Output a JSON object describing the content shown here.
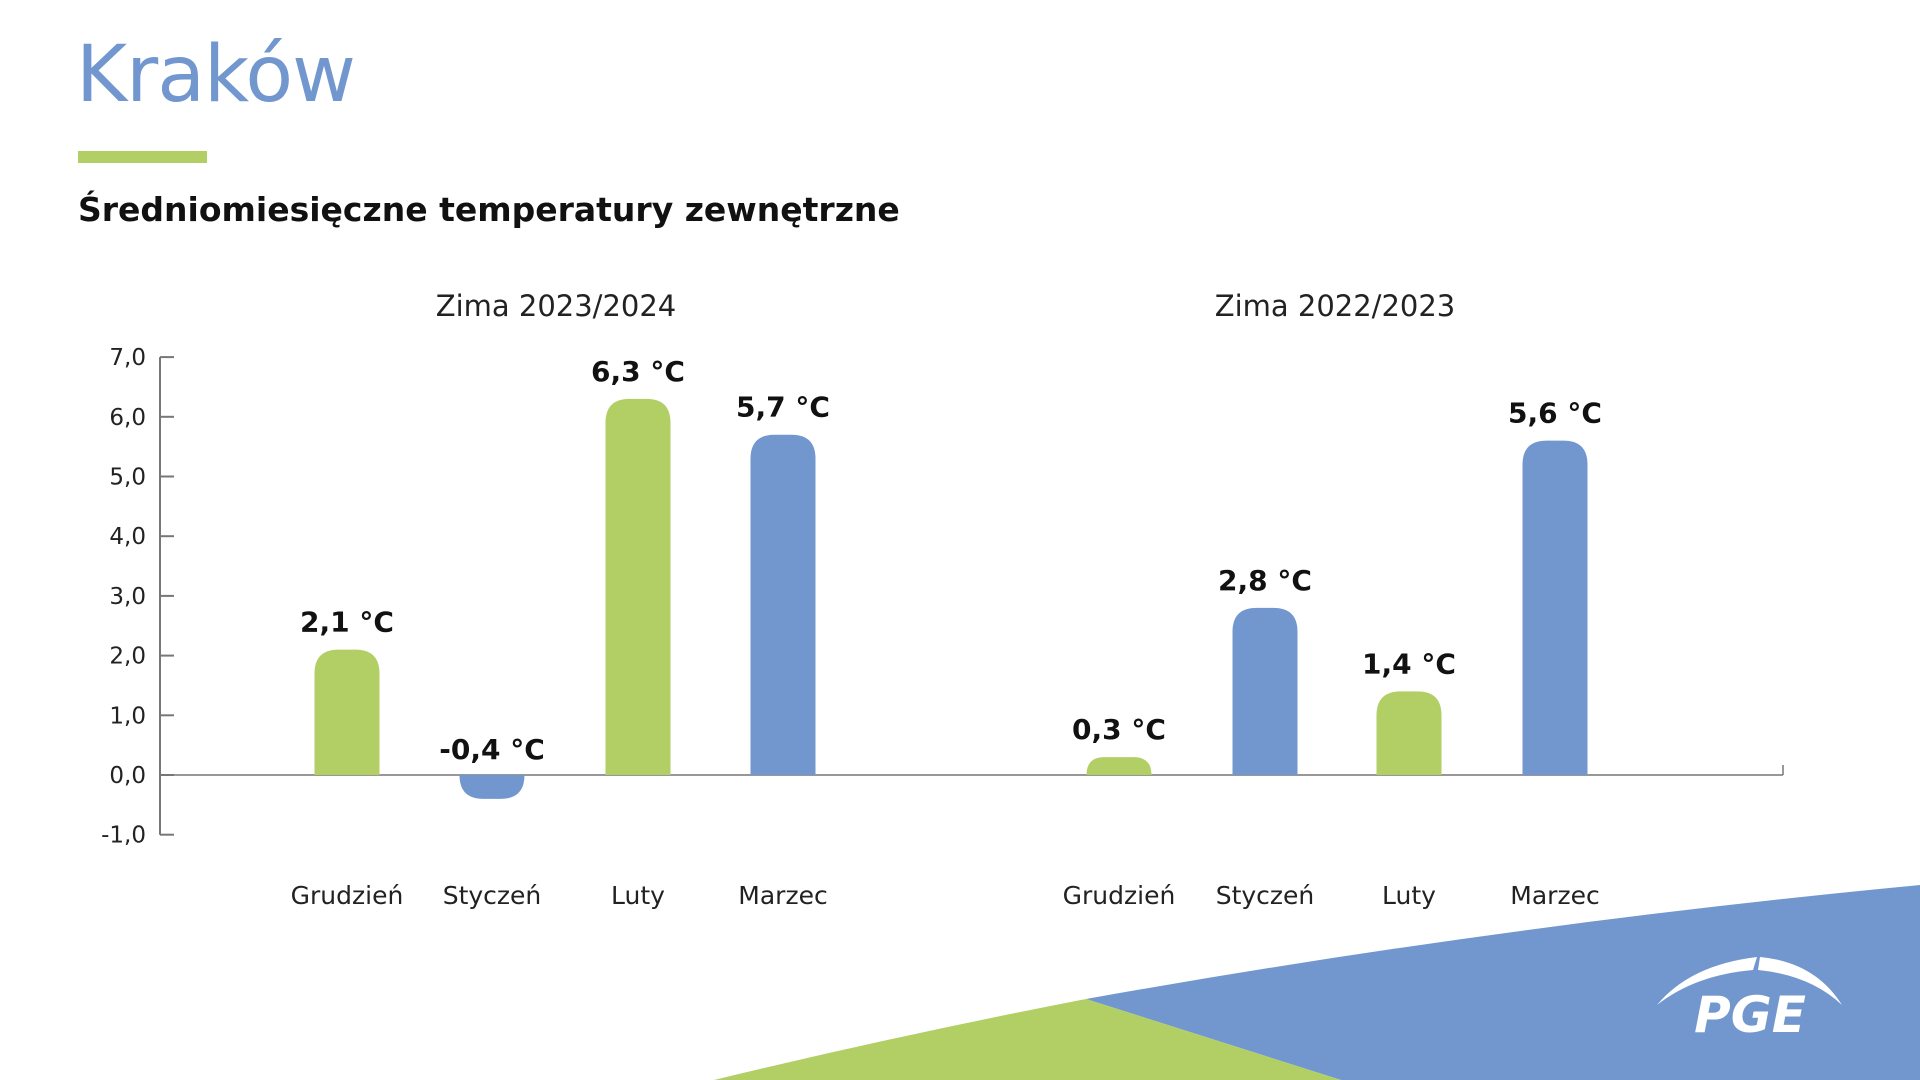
{
  "header": {
    "title": "Kraków",
    "subtitle": "Średniomiesięczne temperatury zewnętrzne"
  },
  "logo": {
    "text": "PGE"
  },
  "colors": {
    "green": "#b2cf66",
    "blue": "#7297cf"
  },
  "chart_data": {
    "type": "bar",
    "ylim": [
      -1,
      7
    ],
    "yticks": [
      "7,0",
      "6,0",
      "5,0",
      "4,0",
      "3,0",
      "2,0",
      "1,0",
      "0,0",
      "-1,0"
    ],
    "grid": false,
    "groups": [
      {
        "title": "Zima 2023/2024",
        "categories": [
          "Grudzień",
          "Styczeń",
          "Luty",
          "Marzec"
        ],
        "values": [
          2.1,
          -0.4,
          6.3,
          5.7
        ],
        "labels": [
          "2,1 °C",
          "-0,4 °C",
          "6,3 °C",
          "5,7 °C"
        ],
        "colors": [
          "green",
          "blue",
          "green",
          "blue"
        ]
      },
      {
        "title": "Zima 2022/2023",
        "categories": [
          "Grudzień",
          "Styczeń",
          "Luty",
          "Marzec"
        ],
        "values": [
          0.3,
          2.8,
          1.4,
          5.6
        ],
        "labels": [
          "0,3 °C",
          "2,8 °C",
          "1,4 °C",
          "5,6 °C"
        ],
        "colors": [
          "green",
          "blue",
          "green",
          "blue"
        ]
      }
    ]
  }
}
